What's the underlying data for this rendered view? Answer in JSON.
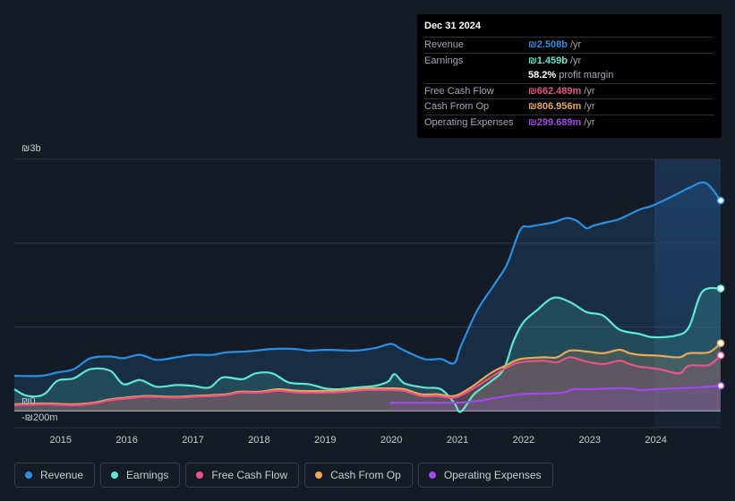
{
  "tooltip": {
    "date": "Dec 31 2024",
    "rows": [
      {
        "label": "Revenue",
        "value": "₪2.508b",
        "unit": "/yr",
        "color": "#2a8fe3"
      },
      {
        "label": "Earnings",
        "value": "₪1.459b",
        "unit": "/yr",
        "color": "#5ee8cf"
      },
      {
        "label": "",
        "value": "58.2%",
        "unit": "profit margin"
      },
      {
        "label": "Free Cash Flow",
        "value": "₪662.489m",
        "unit": "/yr",
        "color": "#e9538a"
      },
      {
        "label": "Cash From Op",
        "value": "₪806.956m",
        "unit": "/yr",
        "color": "#eaa956"
      },
      {
        "label": "Operating Expenses",
        "value": "₪299.689m",
        "unit": "/yr",
        "color": "#a248ec"
      }
    ]
  },
  "legend": [
    {
      "label": "Revenue",
      "color": "#2a8fe3"
    },
    {
      "label": "Earnings",
      "color": "#5ee8cf"
    },
    {
      "label": "Free Cash Flow",
      "color": "#e9538a"
    },
    {
      "label": "Cash From Op",
      "color": "#eaa956"
    },
    {
      "label": "Operating Expenses",
      "color": "#a248ec"
    }
  ],
  "chart_data": {
    "type": "area",
    "y_unit": "₪m",
    "ylim": [
      -200,
      3000
    ],
    "y_tick_labels": [
      {
        "value": 3000,
        "label": "₪3b"
      },
      {
        "value": 0,
        "label": "₪0"
      },
      {
        "value": -200,
        "label": "-₪200m"
      }
    ],
    "xlim": [
      2014.3,
      2024.98
    ],
    "x_ticks": [
      2015,
      2016,
      2017,
      2018,
      2019,
      2020,
      2021,
      2022,
      2023,
      2024
    ],
    "highlight_start": 2023.98,
    "series": [
      {
        "name": "Revenue",
        "color": "#2a8fe3",
        "x": [
          2014.3,
          2014.7,
          2014.95,
          2015.2,
          2015.45,
          2015.75,
          2015.95,
          2016.2,
          2016.45,
          2016.75,
          2017.0,
          2017.3,
          2017.5,
          2017.8,
          2018.2,
          2018.55,
          2018.75,
          2019.05,
          2019.45,
          2019.75,
          2020.0,
          2020.15,
          2020.5,
          2020.75,
          2020.95,
          2021.05,
          2021.3,
          2021.55,
          2021.75,
          2021.95,
          2022.1,
          2022.45,
          2022.65,
          2022.8,
          2022.95,
          2023.05,
          2023.25,
          2023.45,
          2023.75,
          2023.95,
          2024.25,
          2024.5,
          2024.75,
          2024.98
        ],
        "values": [
          418,
          418,
          458,
          498,
          628,
          648,
          628,
          668,
          608,
          638,
          668,
          668,
          698,
          708,
          738,
          738,
          718,
          728,
          718,
          748,
          798,
          738,
          618,
          618,
          568,
          768,
          1198,
          1498,
          1748,
          2158,
          2198,
          2248,
          2298,
          2268,
          2178,
          2208,
          2248,
          2288,
          2398,
          2448,
          2558,
          2658,
          2718,
          2508
        ]
      },
      {
        "name": "Earnings",
        "color": "#5ee8cf",
        "x": [
          2014.3,
          2014.5,
          2014.75,
          2014.95,
          2015.2,
          2015.45,
          2015.75,
          2015.95,
          2016.2,
          2016.45,
          2016.75,
          2017.0,
          2017.25,
          2017.45,
          2017.75,
          2017.95,
          2018.2,
          2018.45,
          2018.75,
          2019.0,
          2019.2,
          2019.45,
          2019.75,
          2019.95,
          2020.05,
          2020.2,
          2020.5,
          2020.75,
          2020.95,
          2021.05,
          2021.25,
          2021.5,
          2021.7,
          2021.85,
          2022.0,
          2022.2,
          2022.45,
          2022.7,
          2022.95,
          2023.2,
          2023.45,
          2023.75,
          2023.95,
          2024.3,
          2024.5,
          2024.7,
          2024.98
        ],
        "values": [
          258,
          178,
          198,
          358,
          388,
          498,
          478,
          318,
          368,
          288,
          308,
          298,
          278,
          398,
          378,
          448,
          448,
          338,
          318,
          268,
          258,
          278,
          298,
          348,
          438,
          328,
          278,
          258,
          98,
          -10,
          198,
          348,
          498,
          838,
          1058,
          1198,
          1348,
          1298,
          1178,
          1138,
          968,
          918,
          878,
          898,
          998,
          1418,
          1459
        ]
      },
      {
        "name": "Cash From Op",
        "color": "#eaa956",
        "x": [
          2014.3,
          2014.75,
          2015.2,
          2015.5,
          2015.75,
          2016.0,
          2016.3,
          2016.7,
          2017.0,
          2017.5,
          2017.7,
          2018.0,
          2018.3,
          2018.6,
          2019.0,
          2019.3,
          2019.6,
          2020.0,
          2020.2,
          2020.45,
          2020.7,
          2020.95,
          2021.2,
          2021.5,
          2021.75,
          2021.95,
          2022.3,
          2022.5,
          2022.7,
          2022.95,
          2023.2,
          2023.45,
          2023.6,
          2023.75,
          2024.05,
          2024.35,
          2024.5,
          2024.8,
          2024.98
        ],
        "values": [
          78,
          88,
          78,
          98,
          138,
          158,
          178,
          168,
          178,
          198,
          228,
          228,
          258,
          238,
          238,
          248,
          268,
          268,
          258,
          198,
          198,
          178,
          278,
          448,
          548,
          618,
          638,
          638,
          718,
          708,
          688,
          728,
          688,
          668,
          658,
          638,
          688,
          698,
          807
        ]
      },
      {
        "name": "Free Cash Flow",
        "color": "#e9538a",
        "x": [
          2014.3,
          2014.75,
          2015.2,
          2015.5,
          2015.75,
          2016.0,
          2016.3,
          2016.7,
          2017.0,
          2017.5,
          2017.7,
          2018.0,
          2018.3,
          2018.6,
          2019.0,
          2019.3,
          2019.6,
          2020.0,
          2020.2,
          2020.45,
          2020.7,
          2020.95,
          2021.2,
          2021.5,
          2021.75,
          2021.95,
          2022.3,
          2022.5,
          2022.7,
          2022.95,
          2023.2,
          2023.45,
          2023.6,
          2023.75,
          2024.05,
          2024.35,
          2024.5,
          2024.8,
          2024.98
        ],
        "values": [
          68,
          78,
          68,
          88,
          128,
          148,
          168,
          158,
          168,
          188,
          218,
          218,
          238,
          218,
          218,
          228,
          248,
          248,
          238,
          178,
          178,
          158,
          248,
          398,
          518,
          578,
          598,
          578,
          638,
          588,
          558,
          598,
          558,
          528,
          498,
          448,
          538,
          548,
          662
        ]
      },
      {
        "name": "Operating Expenses",
        "color": "#a248ec",
        "x": [
          2019.98,
          2020.5,
          2021.0,
          2021.3,
          2021.6,
          2021.95,
          2022.3,
          2022.6,
          2022.75,
          2023.0,
          2023.3,
          2023.6,
          2023.75,
          2024.0,
          2024.3,
          2024.6,
          2024.98
        ],
        "values": [
          98,
          98,
          98,
          118,
          158,
          198,
          208,
          218,
          258,
          258,
          268,
          268,
          248,
          258,
          268,
          278,
          300
        ]
      }
    ]
  }
}
